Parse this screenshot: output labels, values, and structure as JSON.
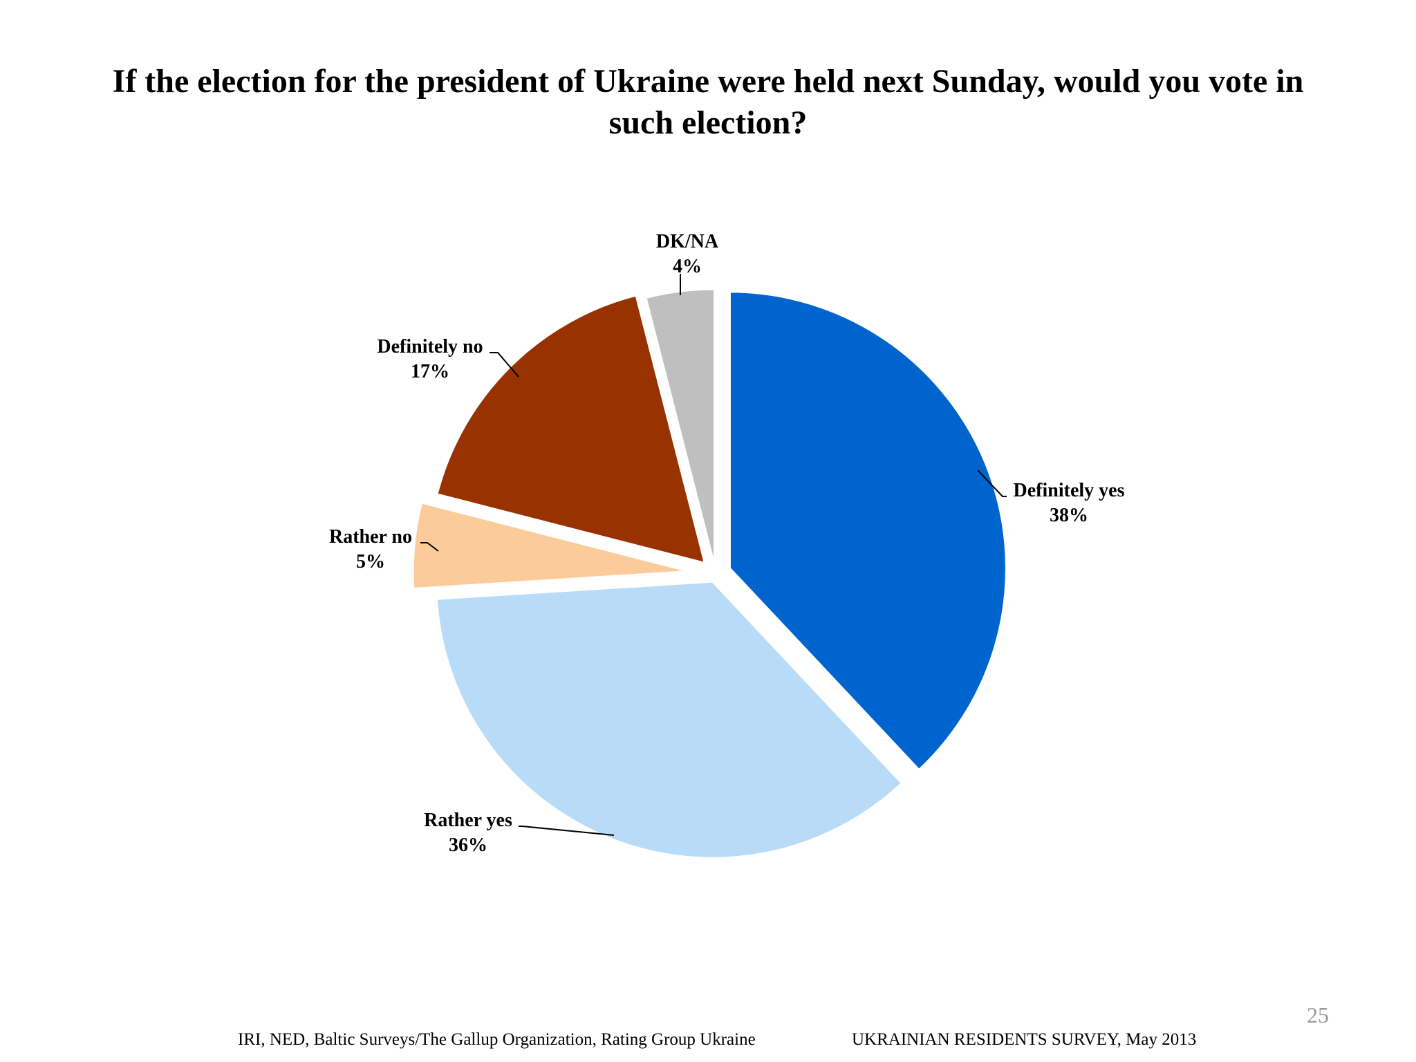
{
  "slide": {
    "title_line1": "If the election for the president of Ukraine were held next Sunday, would you vote in",
    "title_line2": "such election?",
    "footer_source": "IRI, NED,  Baltic Surveys/The Gallup Organization, Rating Group Ukraine",
    "footer_survey": "UKRAINIAN RESIDENTS SURVEY, May  2013",
    "page_number": "25"
  },
  "chart_data": {
    "type": "pie",
    "title": "If the election for the president of Ukraine were held next Sunday, would you vote in such election?",
    "start": "12 o'clock",
    "direction": "clockwise",
    "exploded": true,
    "slices": [
      {
        "label": "Definitely yes",
        "value": 38,
        "value_label": "38%",
        "color": "#0064CE"
      },
      {
        "label": "Rather yes",
        "value": 36,
        "value_label": "36%",
        "color": "#B8DCF8"
      },
      {
        "label": "Rather no",
        "value": 5,
        "value_label": "5%",
        "color": "#FBCB9A"
      },
      {
        "label": "Definitely no",
        "value": 17,
        "value_label": "17%",
        "color": "#983200"
      },
      {
        "label": "DK/NA",
        "value": 4,
        "value_label": "4%",
        "color": "#BFBFBF"
      }
    ]
  }
}
